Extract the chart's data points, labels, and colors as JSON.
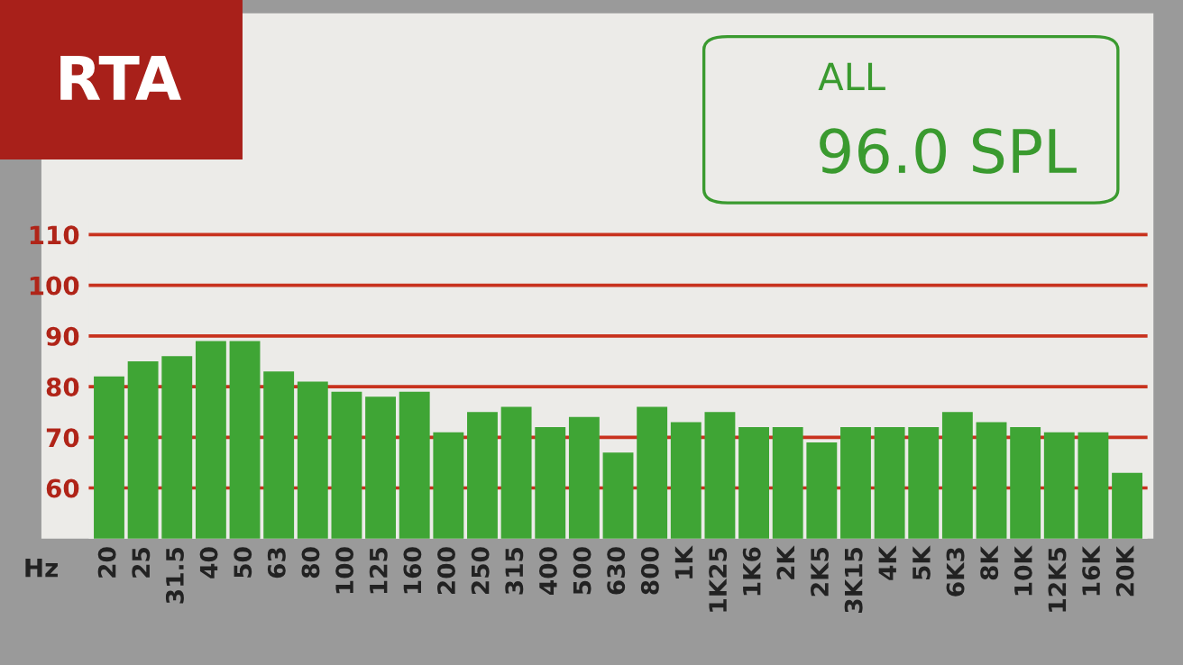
{
  "chart_data": {
    "type": "bar",
    "title": "RTA",
    "xlabel": "Hz",
    "annotations": [
      "ALL",
      "96.0 SPL"
    ],
    "categories": [
      "20",
      "25",
      "31.5",
      "40",
      "50",
      "63",
      "80",
      "100",
      "125",
      "160",
      "200",
      "250",
      "315",
      "400",
      "500",
      "630",
      "800",
      "1K",
      "1K25",
      "1K6",
      "2K",
      "2K5",
      "3K15",
      "4K",
      "5K",
      "6K3",
      "8K",
      "10K",
      "12K5",
      "16K",
      "20K"
    ],
    "values": [
      82,
      85,
      86,
      89,
      89,
      83,
      81,
      79,
      78,
      79,
      71,
      75,
      76,
      72,
      74,
      67,
      76,
      73,
      75,
      72,
      72,
      69,
      72,
      72,
      72,
      75,
      73,
      72,
      71,
      71,
      63
    ],
    "color": "#3fa535",
    "ylim": [
      50,
      113
    ],
    "yticks": [
      60,
      70,
      80,
      90,
      100,
      110
    ],
    "grid": "y"
  }
}
